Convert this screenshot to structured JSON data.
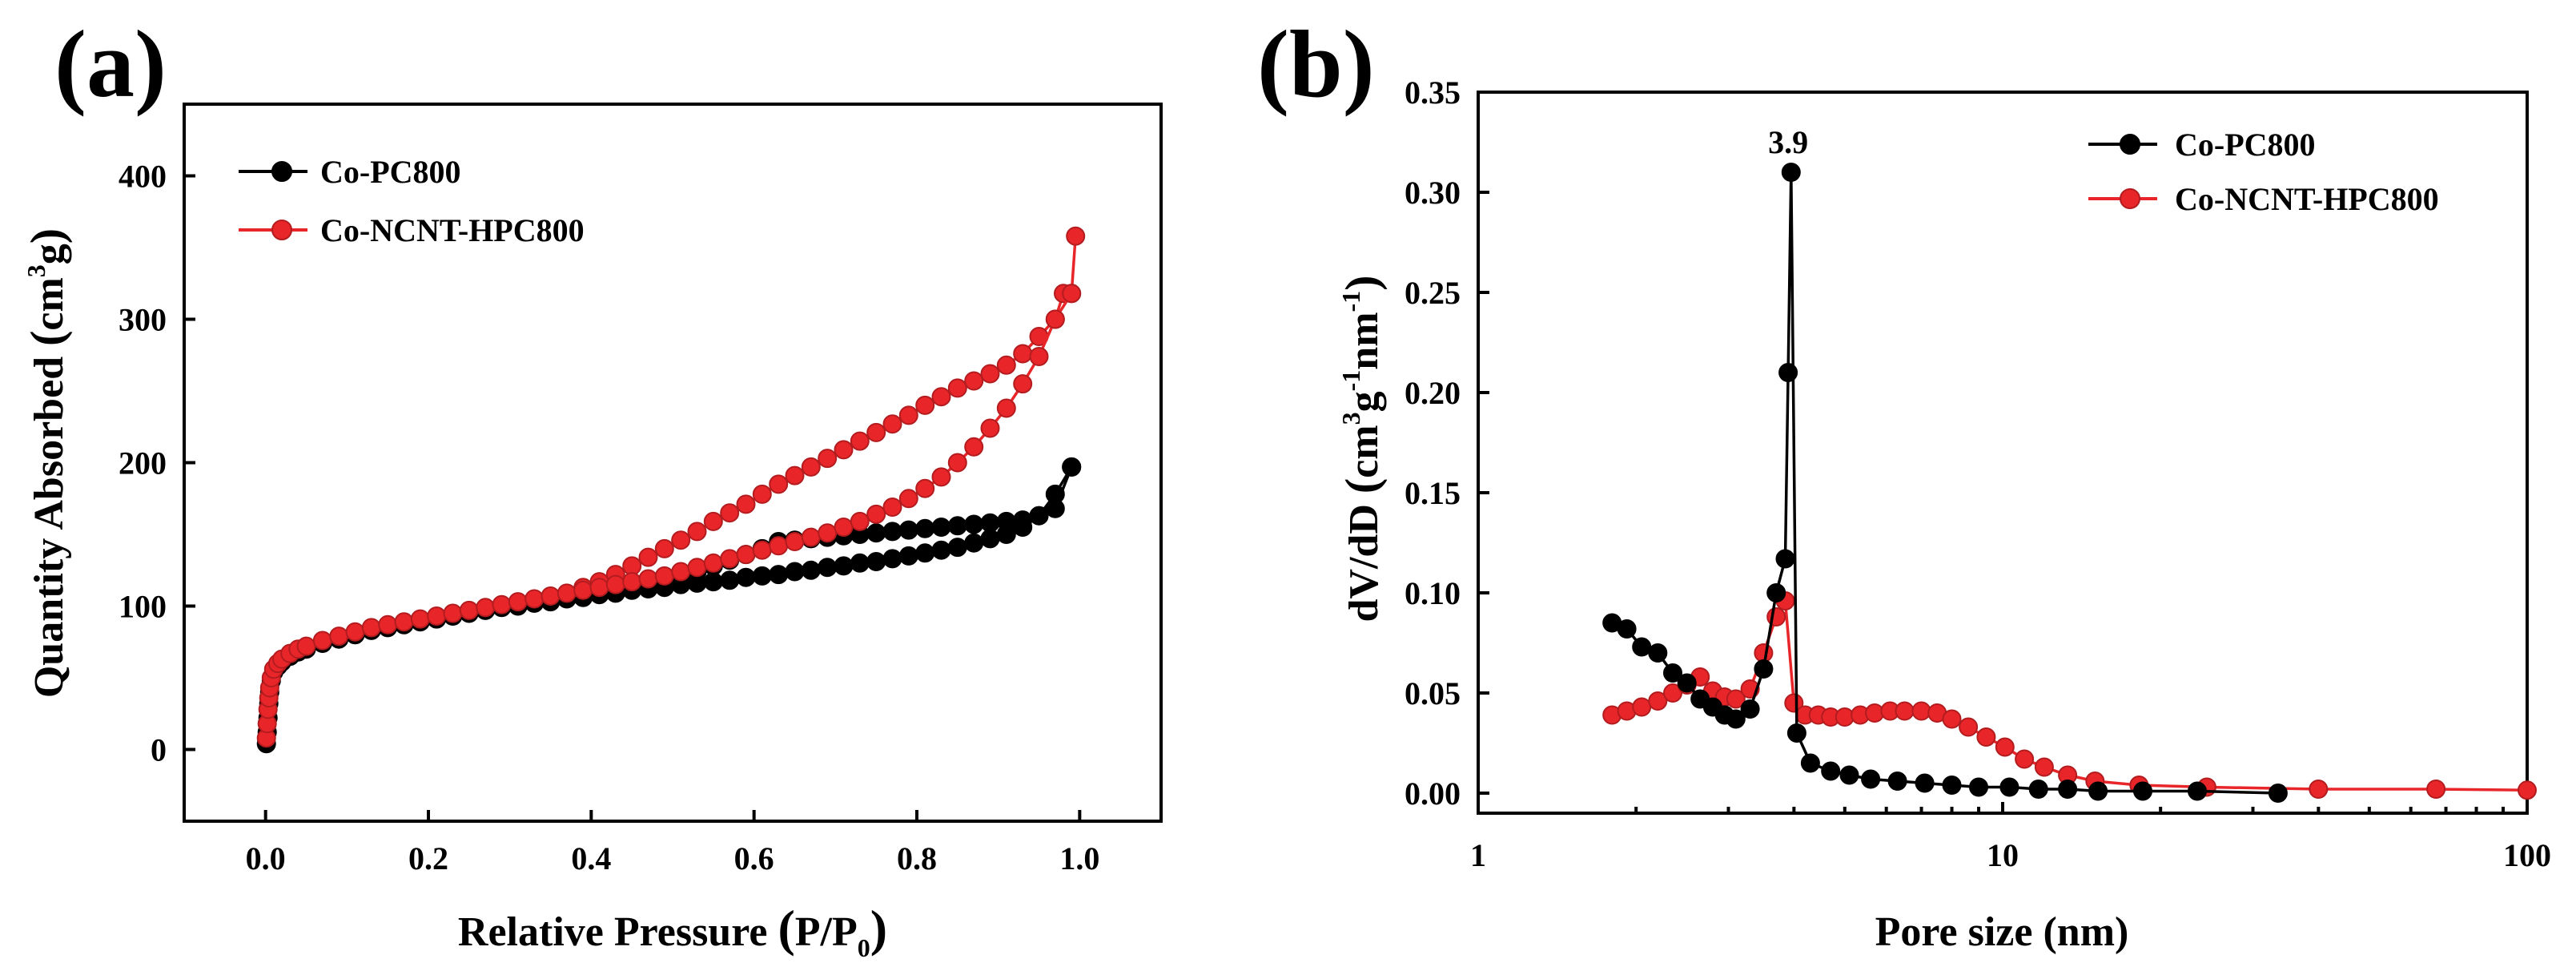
{
  "chart_data": [
    {
      "panel_label": "(a)",
      "type": "line",
      "title": "",
      "xlabel_main": "Relative Pressure ",
      "xlabel_paren_open": "(",
      "xlabel_p": "P/P",
      "xlabel_sub": "0",
      "xlabel_paren_close": ")",
      "ylabel_main": "Quantity Absorbed ",
      "ylabel_paren_open": "(",
      "ylabel_cm": "cm",
      "ylabel_sup": "3",
      "ylabel_g": "g",
      "ylabel_paren_close": ")",
      "xlim": [
        -0.1,
        1.1
      ],
      "ylim": [
        -50,
        450
      ],
      "xticks": [
        0.0,
        0.2,
        0.4,
        0.6,
        0.8,
        1.0
      ],
      "xtick_labels": [
        "0.0",
        "0.2",
        "0.4",
        "0.6",
        "0.8",
        "1.0"
      ],
      "yticks": [
        0,
        100,
        200,
        300,
        400
      ],
      "ytick_labels": [
        "0",
        "100",
        "200",
        "300",
        "400"
      ],
      "legend_position": "top-left",
      "series": [
        {
          "name": "Co-PC800",
          "color": "#000000",
          "adsorption": {
            "x": [
              0.001,
              0.002,
              0.003,
              0.004,
              0.005,
              0.007,
              0.01,
              0.015,
              0.02,
              0.03,
              0.04,
              0.05,
              0.07,
              0.09,
              0.11,
              0.13,
              0.15,
              0.17,
              0.19,
              0.21,
              0.23,
              0.25,
              0.27,
              0.29,
              0.31,
              0.33,
              0.35,
              0.37,
              0.39,
              0.41,
              0.43,
              0.45,
              0.47,
              0.49,
              0.51,
              0.53,
              0.55,
              0.57,
              0.59,
              0.61,
              0.63,
              0.65,
              0.67,
              0.69,
              0.71,
              0.73,
              0.75,
              0.77,
              0.79,
              0.81,
              0.83,
              0.85,
              0.87,
              0.89,
              0.91,
              0.93,
              0.95,
              0.97,
              0.99
            ],
            "y": [
              4,
              12,
              22,
              32,
              40,
              48,
              54,
              58,
              61,
              65,
              68,
              70,
              74,
              77,
              80,
              83,
              85,
              87,
              89,
              91,
              93,
              95,
              97,
              99,
              100,
              102,
              103,
              105,
              106,
              108,
              109,
              111,
              112,
              113,
              115,
              116,
              117,
              118,
              120,
              121,
              122,
              124,
              125,
              127,
              128,
              130,
              131,
              133,
              135,
              137,
              139,
              141,
              144,
              147,
              150,
              155,
              163,
              178,
              197
            ]
          },
          "desorption": {
            "x": [
              0.99,
              0.97,
              0.95,
              0.93,
              0.91,
              0.89,
              0.87,
              0.85,
              0.83,
              0.81,
              0.79,
              0.77,
              0.75,
              0.73,
              0.71,
              0.69,
              0.67,
              0.65,
              0.63,
              0.61,
              0.59,
              0.57,
              0.55,
              0.53,
              0.51,
              0.49,
              0.47,
              0.45
            ],
            "y": [
              197,
              168,
              163,
              160,
              159,
              158,
              157,
              156,
              155,
              154,
              153,
              152,
              151,
              150,
              149,
              148,
              147,
              146,
              145,
              140,
              136,
              132,
              128,
              124,
              120,
              117,
              115,
              113
            ]
          }
        },
        {
          "name": "Co-NCNT-HPC800",
          "color": "#e8262a",
          "adsorption": {
            "x": [
              0.001,
              0.002,
              0.003,
              0.004,
              0.005,
              0.007,
              0.01,
              0.015,
              0.02,
              0.03,
              0.04,
              0.05,
              0.07,
              0.09,
              0.11,
              0.13,
              0.15,
              0.17,
              0.19,
              0.21,
              0.23,
              0.25,
              0.27,
              0.29,
              0.31,
              0.33,
              0.35,
              0.37,
              0.39,
              0.41,
              0.43,
              0.45,
              0.47,
              0.49,
              0.51,
              0.53,
              0.55,
              0.57,
              0.59,
              0.61,
              0.63,
              0.65,
              0.67,
              0.69,
              0.71,
              0.73,
              0.75,
              0.77,
              0.79,
              0.81,
              0.83,
              0.85,
              0.87,
              0.89,
              0.91,
              0.93,
              0.95,
              0.97,
              0.99
            ],
            "y": [
              8,
              18,
              28,
              36,
              43,
              50,
              56,
              60,
              63,
              67,
              70,
              72,
              76,
              79,
              82,
              85,
              87,
              89,
              91,
              93,
              95,
              97,
              99,
              101,
              103,
              105,
              107,
              109,
              111,
              113,
              115,
              117,
              119,
              121,
              124,
              127,
              130,
              133,
              136,
              139,
              142,
              145,
              148,
              151,
              155,
              159,
              164,
              169,
              175,
              182,
              190,
              200,
              211,
              224,
              238,
              255,
              274,
              300,
              318
            ]
          },
          "desorption": {
            "x": [
              0.995,
              0.99,
              0.98,
              0.97,
              0.95,
              0.93,
              0.91,
              0.89,
              0.87,
              0.85,
              0.83,
              0.81,
              0.79,
              0.77,
              0.75,
              0.73,
              0.71,
              0.69,
              0.67,
              0.65,
              0.63,
              0.61,
              0.59,
              0.57,
              0.55,
              0.53,
              0.51,
              0.49,
              0.47,
              0.45,
              0.43,
              0.41,
              0.39
            ],
            "y": [
              358,
              318,
              318,
              300,
              288,
              276,
              268,
              262,
              257,
              252,
              246,
              240,
              233,
              227,
              221,
              215,
              209,
              203,
              197,
              191,
              185,
              178,
              171,
              165,
              159,
              152,
              146,
              140,
              134,
              128,
              122,
              117,
              113
            ]
          }
        }
      ]
    },
    {
      "panel_label": "(b)",
      "type": "line",
      "title": "",
      "xlabel": "Pore size (nm)",
      "ylabel_main": "dV/dD ",
      "ylabel_paren_open": "(",
      "ylabel_cm": "cm",
      "ylabel_sup3": "3",
      "ylabel_g": "g",
      "ylabel_sup_neg1a": "-1",
      "ylabel_nm": "nm",
      "ylabel_sup_neg1b": "-1",
      "ylabel_paren_close": ")",
      "xscale": "log",
      "xlim": [
        1,
        100
      ],
      "ylim": [
        -0.01,
        0.35
      ],
      "xticks": [
        1,
        10,
        100
      ],
      "xtick_labels": [
        "1",
        "10",
        "100"
      ],
      "yticks": [
        0.0,
        0.05,
        0.1,
        0.15,
        0.2,
        0.25,
        0.3,
        0.35
      ],
      "ytick_labels": [
        "0.00",
        "0.05",
        "0.10",
        "0.15",
        "0.20",
        "0.25",
        "0.30",
        "0.35"
      ],
      "annotation": {
        "text": "3.9",
        "x": 3.9,
        "y": 0.31
      },
      "legend_position": "top-right",
      "series": [
        {
          "name": "Co-PC800",
          "color": "#000000",
          "x": [
            1.8,
            1.92,
            2.05,
            2.2,
            2.35,
            2.5,
            2.65,
            2.8,
            2.95,
            3.1,
            3.3,
            3.5,
            3.7,
            3.85,
            3.9,
            3.95,
            4.05,
            4.3,
            4.7,
            5.1,
            5.6,
            6.3,
            7.1,
            8.0,
            9.0,
            10.3,
            11.7,
            13.3,
            15.2,
            18.5,
            23.5,
            33.5
          ],
          "y": [
            0.085,
            0.082,
            0.073,
            0.07,
            0.06,
            0.055,
            0.047,
            0.043,
            0.039,
            0.037,
            0.042,
            0.062,
            0.1,
            0.117,
            0.21,
            0.31,
            0.03,
            0.015,
            0.011,
            0.009,
            0.007,
            0.006,
            0.005,
            0.004,
            0.003,
            0.003,
            0.002,
            0.002,
            0.001,
            0.001,
            0.001,
            0.0
          ]
        },
        {
          "name": "Co-NCNT-HPC800",
          "color": "#e8262a",
          "x": [
            1.8,
            1.92,
            2.05,
            2.2,
            2.35,
            2.5,
            2.65,
            2.8,
            2.95,
            3.1,
            3.3,
            3.5,
            3.7,
            3.85,
            4.0,
            4.2,
            4.45,
            4.7,
            5.0,
            5.35,
            5.7,
            6.1,
            6.5,
            7.0,
            7.5,
            8.0,
            8.6,
            9.3,
            10.1,
            11.0,
            12.0,
            13.3,
            15.0,
            18.2,
            24.5,
            40.0,
            67.0,
            100.0
          ],
          "y": [
            0.039,
            0.041,
            0.043,
            0.046,
            0.05,
            0.054,
            0.058,
            0.051,
            0.048,
            0.047,
            0.052,
            0.07,
            0.088,
            0.096,
            0.045,
            0.039,
            0.039,
            0.038,
            0.038,
            0.039,
            0.04,
            0.041,
            0.041,
            0.041,
            0.04,
            0.037,
            0.033,
            0.028,
            0.023,
            0.017,
            0.013,
            0.009,
            0.006,
            0.004,
            0.003,
            0.002,
            0.002,
            0.0015
          ]
        }
      ]
    }
  ]
}
